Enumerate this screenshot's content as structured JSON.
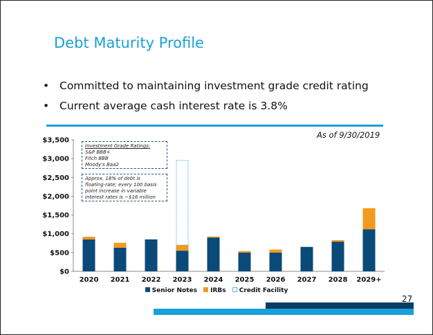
{
  "slide": {
    "title": "Debt Maturity Profile",
    "bullet_char": "•",
    "bullets": [
      "Committed to maintaining investment grade credit rating",
      "Current average cash interest rate is 3.8%"
    ],
    "as_of": "As of 9/30/2019",
    "page_number": "27"
  },
  "notes": {
    "ratings_heading": "Investment Grade Ratings:",
    "ratings": [
      "S&P BBB+",
      "Fitch BBB",
      "Moody's Baa2"
    ],
    "rate_note": [
      "Approx. 18% of debt is",
      "floating-rate; every 100 basis",
      "point increase in variable",
      "interest rates is ~$16 million"
    ]
  },
  "colors": {
    "senior_notes": "#0a4a78",
    "irbs": "#f39a1e",
    "credit_facility_border": "#5bbbe6",
    "accent": "#1aa0d8"
  },
  "chart_data": {
    "type": "bar",
    "stacked": true,
    "categories": [
      "2020",
      "2021",
      "2022",
      "2023",
      "2024",
      "2025",
      "2026",
      "2027",
      "2028",
      "2029+"
    ],
    "series": [
      {
        "name": "Senior Notes",
        "values": [
          850,
          630,
          850,
          550,
          900,
          500,
          500,
          650,
          790,
          1120
        ]
      },
      {
        "name": "IRBs",
        "values": [
          70,
          130,
          0,
          150,
          25,
          40,
          80,
          0,
          40,
          560
        ]
      },
      {
        "name": "Credit Facility",
        "values": [
          0,
          0,
          0,
          2250,
          0,
          0,
          0,
          0,
          0,
          0
        ]
      }
    ],
    "ylim": [
      0,
      3500
    ],
    "yticks": [
      "$0",
      "$500",
      "$1,000",
      "$1,500",
      "$2,000",
      "$2,500",
      "$3,000",
      "$3,500"
    ],
    "legend_position": "bottom",
    "grid": false
  }
}
